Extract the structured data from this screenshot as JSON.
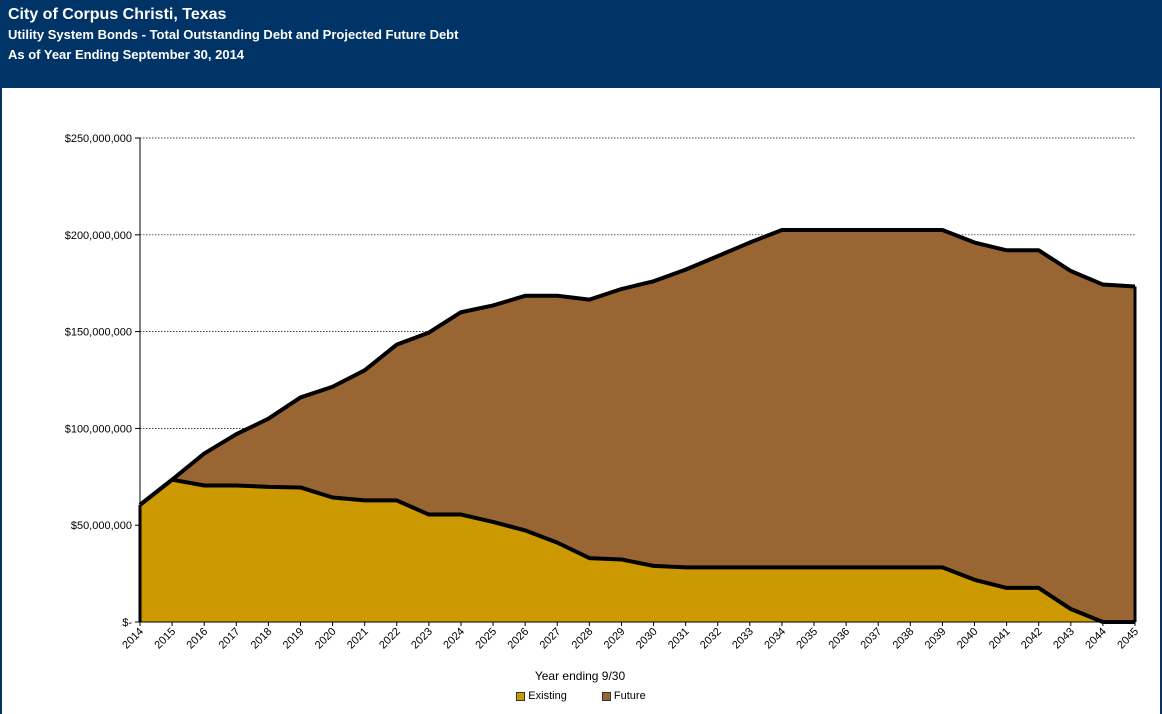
{
  "header": {
    "line1": "City of Corpus Christi, Texas",
    "line2": "Utility System Bonds - Total Outstanding Debt and Projected Future Debt",
    "line3": "As of Year Ending September 30, 2014"
  },
  "colors": {
    "header_bg": "#003366",
    "existing": "#cc9900",
    "future": "#996633"
  },
  "chart_data": {
    "type": "area",
    "stacked": true,
    "xlabel": "Year ending 9/30",
    "ylabel": "",
    "ylim": [
      0,
      250000000
    ],
    "y_ticks": [
      0,
      50000000,
      100000000,
      150000000,
      200000000,
      250000000
    ],
    "y_tick_labels": [
      "$-",
      "$50,000,000",
      "$100,000,000",
      "$150,000,000",
      "$200,000,000",
      "$250,000,000"
    ],
    "gridlines": true,
    "legend_position": "bottom",
    "categories": [
      "2014",
      "2015",
      "2016",
      "2017",
      "2018",
      "2019",
      "2020",
      "2021",
      "2022",
      "2023",
      "2024",
      "2025",
      "2026",
      "2027",
      "2028",
      "2029",
      "2030",
      "2031",
      "2032",
      "2033",
      "2034",
      "2035",
      "2036",
      "2037",
      "2038",
      "2039",
      "2040",
      "2041",
      "2042",
      "2043",
      "2044",
      "2045"
    ],
    "series": [
      {
        "name": "Existing",
        "values": [
          60500000,
          73500000,
          70500000,
          70500000,
          69800000,
          69500000,
          64300000,
          62800000,
          62800000,
          55500000,
          55500000,
          51700000,
          47300000,
          41000000,
          33000000,
          32300000,
          29000000,
          28200000,
          28200000,
          28200000,
          28200000,
          28200000,
          28200000,
          28200000,
          28200000,
          28200000,
          21800000,
          17600000,
          17600000,
          6700000,
          0,
          0
        ]
      },
      {
        "name": "Future",
        "values": [
          0,
          0,
          16500000,
          26500000,
          35200000,
          46500000,
          57200000,
          67200000,
          80500000,
          94000000,
          104500000,
          111800000,
          121200000,
          127500000,
          133500000,
          139700000,
          147000000,
          153800000,
          160800000,
          167800000,
          174300000,
          174300000,
          174300000,
          174300000,
          174300000,
          174300000,
          174200000,
          174400000,
          174400000,
          174600000,
          174300000,
          173300000
        ]
      }
    ]
  }
}
